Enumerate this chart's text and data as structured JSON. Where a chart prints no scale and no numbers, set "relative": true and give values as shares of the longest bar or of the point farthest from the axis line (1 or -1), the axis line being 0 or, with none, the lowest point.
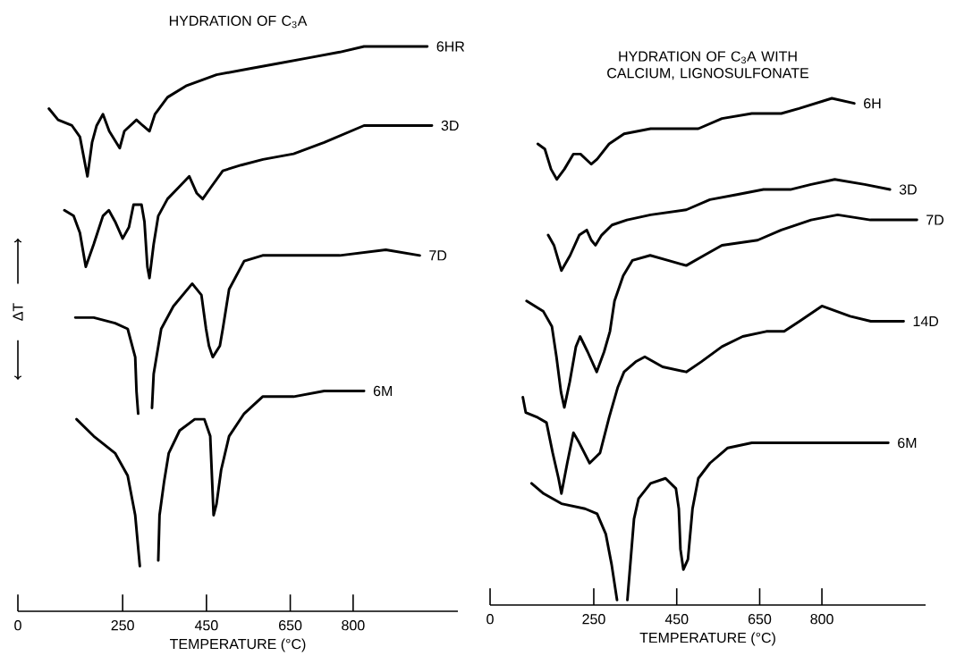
{
  "chart_data": [
    {
      "type": "line",
      "title": "HYDRATION OF C$_{3}$A",
      "xlabel": "TEMPERATURE (°C)",
      "ylabel": "ΔT",
      "relative": true,
      "xlim": [
        0,
        1050
      ],
      "xticks": [
        0,
        250,
        450,
        650,
        800
      ],
      "series": [
        {
          "name": "6HR",
          "color": "#000000",
          "x": [
            74,
            96,
            129,
            148,
            166,
            177,
            188,
            203,
            218,
            243,
            254,
            283,
            298,
            314,
            327,
            357,
            401,
            474,
            548,
            621,
            695,
            768,
            826,
            915,
            977
          ],
          "values": [
            0.89,
            0.87,
            0.86,
            0.84,
            0.77,
            0.83,
            0.86,
            0.88,
            0.85,
            0.82,
            0.85,
            0.87,
            0.86,
            0.85,
            0.88,
            0.91,
            0.93,
            0.95,
            0.96,
            0.97,
            0.98,
            0.99,
            1.0,
            1.0,
            1.0
          ]
        },
        {
          "name": "3D",
          "color": "#000000",
          "x": [
            111,
            133,
            148,
            162,
            181,
            203,
            217,
            232,
            250,
            265,
            276,
            295,
            302,
            309,
            314,
            324,
            335,
            357,
            383,
            409,
            427,
            441,
            460,
            489,
            533,
            585,
            658,
            731,
            826,
            900,
            988
          ],
          "values": [
            0.71,
            0.7,
            0.67,
            0.61,
            0.65,
            0.7,
            0.71,
            0.69,
            0.66,
            0.68,
            0.72,
            0.72,
            0.69,
            0.61,
            0.59,
            0.65,
            0.7,
            0.73,
            0.75,
            0.77,
            0.74,
            0.73,
            0.75,
            0.78,
            0.79,
            0.8,
            0.81,
            0.83,
            0.86,
            0.86,
            0.86
          ]
        },
        {
          "name": "7D",
          "color": "#000000",
          "x": [
            137,
            181,
            232,
            262,
            280,
            283,
            287,
            300,
            320,
            324,
            342,
            371,
            416,
            438,
            449,
            456,
            465,
            482,
            489,
            504,
            540,
            584,
            694,
            768,
            878,
            959
          ],
          "values": [
            0.52,
            0.52,
            0.51,
            0.5,
            0.45,
            0.39,
            0.35,
            null,
            0.36,
            0.42,
            0.5,
            0.54,
            0.58,
            0.56,
            0.5,
            0.47,
            0.45,
            0.47,
            0.5,
            0.57,
            0.62,
            0.63,
            0.63,
            0.63,
            0.64,
            0.63
          ]
        },
        {
          "name": "6M",
          "color": "#000000",
          "x": [
            140,
            181,
            232,
            262,
            280,
            291,
            300,
            335,
            338,
            349,
            360,
            386,
            422,
            445,
            459,
            463,
            467,
            474,
            485,
            504,
            540,
            584,
            658,
            731,
            826
          ],
          "values": [
            0.34,
            0.31,
            0.28,
            0.24,
            0.17,
            0.08,
            null,
            0.09,
            0.17,
            0.23,
            0.28,
            0.32,
            0.34,
            0.34,
            0.31,
            0.24,
            0.17,
            0.19,
            0.25,
            0.31,
            0.35,
            0.38,
            0.38,
            0.39,
            0.39
          ]
        }
      ]
    },
    {
      "type": "line",
      "title": "HYDRATION OF C$_{3}$A WITH CALCIUM, LIGNOSULFONATE",
      "xlabel": "TEMPERATURE (°C)",
      "relative": true,
      "xlim": [
        0,
        1050
      ],
      "xticks": [
        0,
        250,
        450,
        650,
        800
      ],
      "series": [
        {
          "name": "6H",
          "color": "#000000",
          "x": [
            115,
            132,
            147,
            161,
            179,
            201,
            218,
            244,
            258,
            287,
            323,
            387,
            444,
            502,
            559,
            631,
            702,
            745,
            824,
            878
          ],
          "values": [
            0.91,
            0.9,
            0.86,
            0.84,
            0.86,
            0.89,
            0.89,
            0.87,
            0.88,
            0.91,
            0.93,
            0.94,
            0.94,
            0.94,
            0.96,
            0.97,
            0.97,
            0.98,
            1.0,
            0.99
          ]
        },
        {
          "name": "3D",
          "color": "#000000",
          "x": [
            140,
            154,
            172,
            193,
            215,
            233,
            244,
            254,
            269,
            294,
            330,
            387,
            473,
            530,
            595,
            659,
            724,
            774,
            831,
            903,
            964
          ],
          "values": [
            0.73,
            0.71,
            0.66,
            0.69,
            0.73,
            0.74,
            0.72,
            0.71,
            0.73,
            0.75,
            0.76,
            0.77,
            0.78,
            0.8,
            0.81,
            0.82,
            0.82,
            0.83,
            0.84,
            0.83,
            0.82
          ]
        },
        {
          "name": "7D",
          "color": "#000000",
          "x": [
            88,
            128,
            149,
            160,
            171,
            179,
            192,
            207,
            217,
            235,
            257,
            275,
            289,
            300,
            321,
            343,
            386,
            429,
            473,
            516,
            559,
            645,
            702,
            774,
            838,
            917,
            1029
          ],
          "values": [
            0.6,
            0.58,
            0.55,
            0.49,
            0.42,
            0.39,
            0.44,
            0.51,
            0.53,
            0.5,
            0.46,
            0.5,
            0.54,
            0.6,
            0.65,
            0.68,
            0.69,
            0.68,
            0.67,
            0.69,
            0.71,
            0.72,
            0.74,
            0.76,
            0.77,
            0.76,
            0.76
          ]
        },
        {
          "name": "14D",
          "color": "#000000",
          "x": [
            79,
            86,
            115,
            136,
            151,
            165,
            172,
            186,
            201,
            215,
            240,
            265,
            287,
            308,
            323,
            351,
            373,
            416,
            473,
            509,
            559,
            609,
            666,
            709,
            746,
            800,
            868,
            918,
            997
          ],
          "values": [
            0.41,
            0.38,
            0.37,
            0.36,
            0.3,
            0.25,
            0.22,
            0.28,
            0.34,
            0.32,
            0.28,
            0.3,
            0.37,
            0.43,
            0.46,
            0.48,
            0.49,
            0.47,
            0.46,
            0.48,
            0.51,
            0.53,
            0.54,
            0.54,
            0.56,
            0.59,
            0.57,
            0.56,
            0.56
          ]
        },
        {
          "name": "6M",
          "color": "#000000",
          "x": [
            100,
            129,
            172,
            229,
            258,
            279,
            293,
            306,
            315,
            331,
            337,
            347,
            358,
            387,
            423,
            448,
            455,
            459,
            466,
            477,
            488,
            502,
            530,
            573,
            631,
            702,
            810,
            960
          ],
          "values": [
            0.24,
            0.22,
            0.2,
            0.19,
            0.18,
            0.14,
            0.08,
            0.01,
            null,
            0.01,
            0.07,
            0.17,
            0.21,
            0.24,
            0.25,
            0.23,
            0.19,
            0.11,
            0.07,
            0.09,
            0.19,
            0.25,
            0.28,
            0.31,
            0.32,
            0.32,
            0.32,
            0.32
          ]
        }
      ]
    }
  ]
}
